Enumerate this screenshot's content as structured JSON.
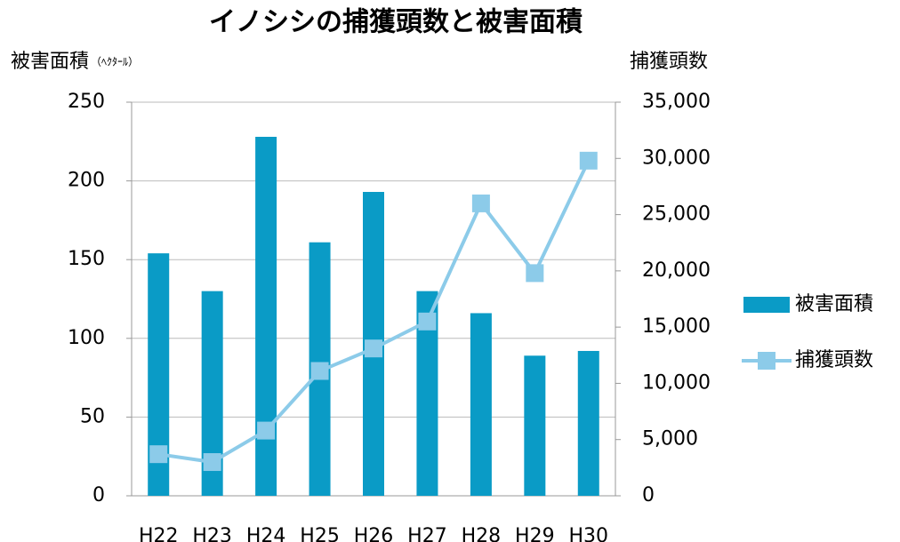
{
  "chart_data": {
    "type": "bar_line",
    "title": "イノシシの捕獲頭数と被害面積",
    "y_label": "被害面積",
    "y_unit": "（ﾍｸﾀｰﾙ）",
    "y2_label": "捕獲頭数",
    "categories": [
      "H22",
      "H23",
      "H24",
      "H25",
      "H26",
      "H27",
      "H28",
      "H29",
      "H30"
    ],
    "series": [
      {
        "name": "被害面積",
        "type": "bar",
        "color": "#0a9bc6",
        "values": [
          154,
          130,
          228,
          161,
          193,
          130,
          116,
          89,
          92
        ]
      },
      {
        "name": "捕獲頭数",
        "type": "line",
        "axis": "y2",
        "color": "#8ccbe9",
        "values": [
          3700,
          3000,
          5800,
          11100,
          13100,
          15500,
          26000,
          19800,
          29800
        ]
      }
    ],
    "ylim": [
      0,
      250
    ],
    "yticks": [
      0,
      50,
      100,
      150,
      200,
      250
    ],
    "y2lim": [
      0,
      35000
    ],
    "y2ticks": [
      0,
      {
        "value": 5000,
        "label": "5,000"
      },
      {
        "value": 10000,
        "label": "10,000"
      },
      {
        "value": 15000,
        "label": "15,000"
      },
      {
        "value": 20000,
        "label": "20,000"
      },
      {
        "value": 25000,
        "label": "25,000"
      },
      {
        "value": 30000,
        "label": "30,000"
      },
      {
        "value": 35000,
        "label": "35,000"
      }
    ],
    "grid": true,
    "legend": "right"
  }
}
